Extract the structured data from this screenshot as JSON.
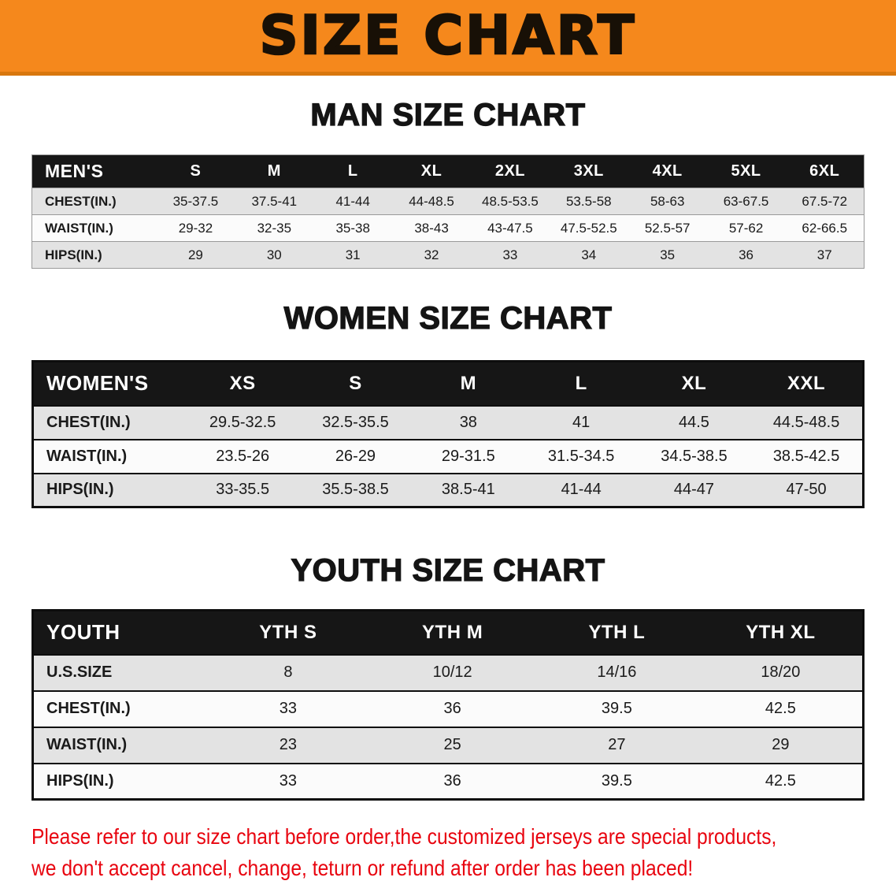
{
  "banner": {
    "title": "SIZE CHART",
    "bg_color": "#f5881c"
  },
  "chart_data": [
    {
      "type": "table",
      "title": "MAN SIZE CHART",
      "header": [
        "MEN'S",
        "S",
        "M",
        "L",
        "XL",
        "2XL",
        "3XL",
        "4XL",
        "5XL",
        "6XL"
      ],
      "rows": [
        [
          "CHEST(IN.)",
          "35-37.5",
          "37.5-41",
          "41-44",
          "44-48.5",
          "48.5-53.5",
          "53.5-58",
          "58-63",
          "63-67.5",
          "67.5-72"
        ],
        [
          "WAIST(IN.)",
          "29-32",
          "32-35",
          "35-38",
          "38-43",
          "43-47.5",
          "47.5-52.5",
          "52.5-57",
          "57-62",
          "62-66.5"
        ],
        [
          "HIPS(IN.)",
          "29",
          "30",
          "31",
          "32",
          "33",
          "34",
          "35",
          "36",
          "37"
        ]
      ]
    },
    {
      "type": "table",
      "title": "WOMEN SIZE CHART",
      "header": [
        "WOMEN'S",
        "XS",
        "S",
        "M",
        "L",
        "XL",
        "XXL"
      ],
      "rows": [
        [
          "CHEST(IN.)",
          "29.5-32.5",
          "32.5-35.5",
          "38",
          "41",
          "44.5",
          "44.5-48.5"
        ],
        [
          "WAIST(IN.)",
          "23.5-26",
          "26-29",
          "29-31.5",
          "31.5-34.5",
          "34.5-38.5",
          "38.5-42.5"
        ],
        [
          "HIPS(IN.)",
          "33-35.5",
          "35.5-38.5",
          "38.5-41",
          "41-44",
          "44-47",
          "47-50"
        ]
      ]
    },
    {
      "type": "table",
      "title": "YOUTH SIZE CHART",
      "header": [
        "YOUTH",
        "YTH S",
        "YTH M",
        "YTH L",
        "YTH XL"
      ],
      "rows": [
        [
          "U.S.SIZE",
          "8",
          "10/12",
          "14/16",
          "18/20"
        ],
        [
          "CHEST(IN.)",
          "33",
          "36",
          "39.5",
          "42.5"
        ],
        [
          "WAIST(IN.)",
          "23",
          "25",
          "27",
          "29"
        ],
        [
          "HIPS(IN.)",
          "33",
          "36",
          "39.5",
          "42.5"
        ]
      ]
    }
  ],
  "disclaimer": {
    "color": "#e8040f",
    "line1": "Please refer to our size chart before order,the customized jerseys are special products,",
    "line2": "we don't accept cancel, change, teturn or refund after order has been placed!"
  }
}
